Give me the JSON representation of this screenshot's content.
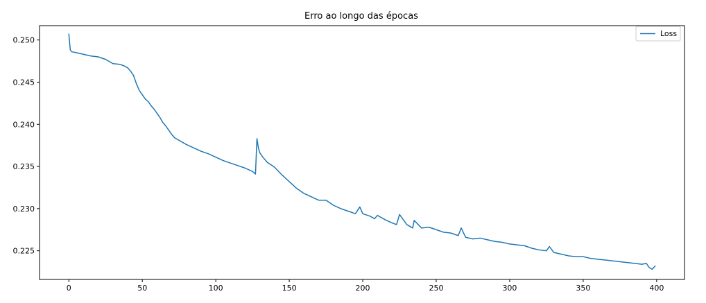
{
  "chart_data": {
    "type": "line",
    "title": "Erro ao longo das épocas",
    "xlabel": "",
    "ylabel": "",
    "xlim": [
      -19.95,
      418.95
    ],
    "ylim": [
      0.2216,
      0.2517
    ],
    "xticks": [
      0,
      50,
      100,
      150,
      200,
      250,
      300,
      350,
      400
    ],
    "xtick_labels": [
      "0",
      "50",
      "100",
      "150",
      "200",
      "250",
      "300",
      "350",
      "400"
    ],
    "yticks": [
      0.225,
      0.23,
      0.235,
      0.24,
      0.245,
      0.25
    ],
    "ytick_labels": [
      "0.225",
      "0.230",
      "0.235",
      "0.240",
      "0.245",
      "0.250"
    ],
    "grid": false,
    "legend_position": "top-right",
    "series": [
      {
        "name": "Loss",
        "color": "#1f77b4",
        "x": [
          0,
          1,
          2,
          5,
          10,
          15,
          20,
          25,
          30,
          35,
          38,
          40,
          42,
          44,
          46,
          48,
          50,
          52,
          54,
          56,
          58,
          60,
          62,
          64,
          66,
          68,
          70,
          72,
          75,
          80,
          85,
          90,
          95,
          100,
          105,
          110,
          115,
          120,
          125,
          127,
          128,
          129,
          130,
          132,
          135,
          140,
          145,
          150,
          155,
          160,
          165,
          170,
          175,
          180,
          185,
          190,
          195,
          198,
          200,
          205,
          208,
          210,
          215,
          220,
          223,
          225,
          230,
          234,
          235,
          240,
          245,
          250,
          255,
          260,
          265,
          267,
          270,
          275,
          280,
          285,
          290,
          295,
          300,
          305,
          310,
          315,
          320,
          325,
          327,
          330,
          335,
          340,
          345,
          350,
          355,
          360,
          365,
          370,
          375,
          380,
          385,
          390,
          393,
          395,
          397,
          399
        ],
        "y": [
          0.2507,
          0.2488,
          0.2486,
          0.2485,
          0.2483,
          0.2481,
          0.248,
          0.2477,
          0.2472,
          0.2471,
          0.2469,
          0.2467,
          0.2463,
          0.2458,
          0.2448,
          0.244,
          0.2435,
          0.243,
          0.2427,
          0.2422,
          0.2418,
          0.2413,
          0.2408,
          0.2402,
          0.2398,
          0.2393,
          0.2388,
          0.2384,
          0.2381,
          0.2376,
          0.2372,
          0.2368,
          0.2365,
          0.2361,
          0.2357,
          0.2354,
          0.2351,
          0.2348,
          0.2344,
          0.2341,
          0.2383,
          0.2372,
          0.2366,
          0.2361,
          0.2355,
          0.2349,
          0.234,
          0.2332,
          0.2324,
          0.2318,
          0.2314,
          0.231,
          0.231,
          0.2304,
          0.23,
          0.2297,
          0.2294,
          0.2302,
          0.2294,
          0.2291,
          0.2288,
          0.2292,
          0.2287,
          0.2283,
          0.2281,
          0.2293,
          0.2281,
          0.2277,
          0.2286,
          0.2277,
          0.2278,
          0.2275,
          0.2272,
          0.2271,
          0.2268,
          0.2277,
          0.2266,
          0.2264,
          0.2265,
          0.2263,
          0.2261,
          0.226,
          0.2258,
          0.2257,
          0.2256,
          0.2253,
          0.2251,
          0.225,
          0.2255,
          0.2248,
          0.2246,
          0.2244,
          0.2243,
          0.2243,
          0.2241,
          0.224,
          0.2239,
          0.2238,
          0.2237,
          0.2236,
          0.2235,
          0.2234,
          0.2235,
          0.223,
          0.2228,
          0.2232
        ]
      }
    ]
  }
}
